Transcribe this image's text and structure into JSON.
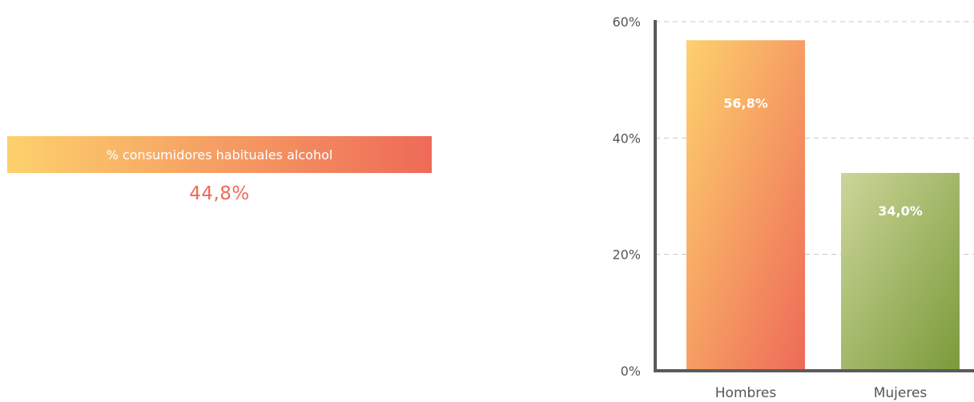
{
  "stat": {
    "label": "% consumidores habituales alcohol",
    "value": "44,8%"
  },
  "colors": {
    "warm_start": "#fdd16d",
    "warm_end": "#ee6a58",
    "green_start": "#cbd699",
    "green_end": "#7b9a3a",
    "axis": "#5a5a5a",
    "grid": "#c8c8c8",
    "text": "#555555",
    "stat_value": "#ee6a58"
  },
  "chart_data": {
    "type": "bar",
    "title": "",
    "xlabel": "",
    "ylabel": "",
    "categories": [
      "Hombres",
      "Mujeres"
    ],
    "values": [
      56.8,
      34.0
    ],
    "value_labels": [
      "56,8%",
      "34,0%"
    ],
    "ylim": [
      0,
      60
    ],
    "yticks": [
      0,
      20,
      40,
      60
    ],
    "ytick_labels": [
      "0%",
      "20%",
      "40%",
      "60%"
    ],
    "grid": true
  }
}
